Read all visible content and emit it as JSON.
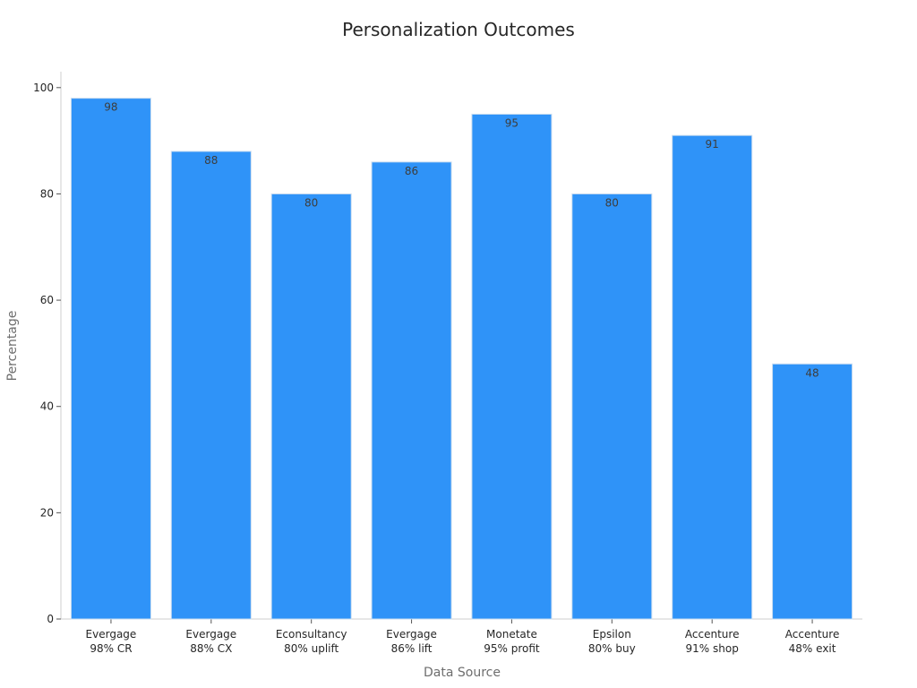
{
  "chart_data": {
    "type": "bar",
    "title": "Personalization Outcomes",
    "xlabel": "Data Source",
    "ylabel": "Percentage",
    "ylim": [
      0,
      103
    ],
    "yticks": [
      0,
      20,
      40,
      60,
      80,
      100
    ],
    "grid": false,
    "categories": [
      [
        "Evergage",
        "98% CR"
      ],
      [
        "Evergage",
        "88% CX"
      ],
      [
        "Econsultancy",
        "80% uplift"
      ],
      [
        "Evergage",
        "86% lift"
      ],
      [
        "Monetate",
        "95% profit"
      ],
      [
        "Epsilon",
        "80% buy"
      ],
      [
        "Accenture",
        "91% shop"
      ],
      [
        "Accenture",
        "48% exit"
      ]
    ],
    "values": [
      98,
      88,
      80,
      86,
      95,
      80,
      91,
      48
    ],
    "colors": {
      "bar": "#2f93f8",
      "bar_edge": "#c9dcf0"
    }
  }
}
